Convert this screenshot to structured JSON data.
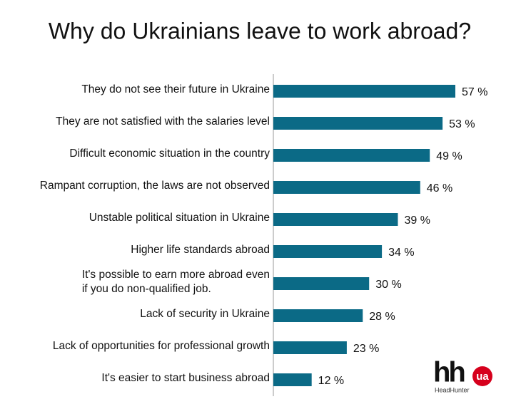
{
  "chart_data": {
    "type": "bar",
    "orientation": "horizontal",
    "title": "Why do Ukrainians leave to work abroad?",
    "categories": [
      "They do not see their future in Ukraine",
      "They are not satisfied with the salaries level",
      "Difficult economic situation in the country",
      "Rampant corruption, the laws are not observed",
      "Unstable political situation in Ukraine",
      "Higher life standards abroad",
      "It's possible to earn more abroad even\nif you do non-qualified job.",
      "Lack of security in Ukraine",
      "Lack of opportunities for professional growth",
      "It's easier to start business abroad"
    ],
    "values": [
      57,
      53,
      49,
      46,
      39,
      34,
      30,
      28,
      23,
      12
    ],
    "value_labels": [
      "57 %",
      "53 %",
      "49 %",
      "46 %",
      "39 %",
      "34 %",
      "30 %",
      "28 %",
      "23 %",
      "12 %"
    ],
    "color": "#0b6a86"
  },
  "logo": {
    "mark": "hh",
    "badge": "ua",
    "name": "HeadHunter"
  }
}
